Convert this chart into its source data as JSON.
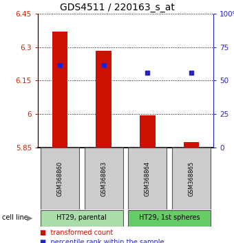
{
  "title": "GDS4511 / 220163_s_at",
  "samples": [
    "GSM368860",
    "GSM368863",
    "GSM368864",
    "GSM368865"
  ],
  "transformed_counts": [
    6.37,
    6.285,
    5.995,
    5.875
  ],
  "percentile_ranks": [
    6.22,
    6.22,
    6.185,
    6.185
  ],
  "y_min": 5.85,
  "y_max": 6.45,
  "y_ticks": [
    5.85,
    6.0,
    6.15,
    6.3,
    6.45
  ],
  "y_tick_labels": [
    "5.85",
    "6",
    "6.15",
    "6.3",
    "6.45"
  ],
  "y2_tick_labels": [
    "0",
    "25",
    "50",
    "75",
    "100%"
  ],
  "bar_color": "#cc1100",
  "dot_color": "#2222cc",
  "bar_width": 0.35,
  "baseline": 5.85,
  "legend_items": [
    {
      "label": "transformed count",
      "color": "#cc1100"
    },
    {
      "label": "percentile rank within the sample",
      "color": "#2222cc"
    }
  ],
  "sample_box_color": "#cccccc",
  "cell_groups": [
    {
      "indices": [
        0,
        1
      ],
      "label": "HT29, parental",
      "color": "#aaddaa"
    },
    {
      "indices": [
        2,
        3
      ],
      "label": "HT29, 1st spheres",
      "color": "#66cc66"
    }
  ],
  "title_fontsize": 10,
  "tick_fontsize": 7.5,
  "axis_label_color_left": "#cc2200",
  "axis_label_color_right": "#2222cc"
}
